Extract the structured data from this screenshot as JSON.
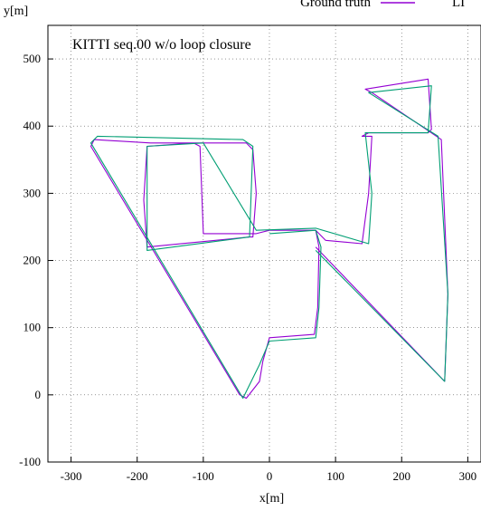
{
  "chart_data": {
    "type": "line",
    "title": "KITTI seq.00 w/o loop closure",
    "xlabel": "x[m]",
    "ylabel": "y[m]",
    "xlim": [
      -335,
      320
    ],
    "ylim": [
      -100,
      550
    ],
    "xticks": [
      -300,
      -200,
      -100,
      0,
      100,
      200,
      300
    ],
    "yticks": [
      -100,
      0,
      100,
      200,
      300,
      400,
      500
    ],
    "grid": true,
    "legend_placement": "top",
    "legend": [
      {
        "name": "Ground truth",
        "color": "#9400d3"
      },
      {
        "name": "LI",
        "color": "#009e73"
      }
    ],
    "series": [
      {
        "name": "Ground truth",
        "color": "#9400d3",
        "x": [
          0,
          70,
          75,
          73,
          68,
          0,
          -10,
          -15,
          -35,
          -45,
          -270,
          -265,
          -180,
          -35,
          -25,
          -20,
          -25,
          -30,
          -185,
          -190,
          -185,
          -115,
          -105,
          -100,
          -90,
          -20,
          0,
          70,
          85,
          140,
          150,
          155,
          140,
          150,
          240,
          245,
          240,
          145,
          155,
          260,
          270,
          265,
          70
        ],
        "y": [
          245,
          245,
          220,
          130,
          90,
          85,
          50,
          20,
          -5,
          0,
          370,
          380,
          375,
          375,
          365,
          300,
          235,
          235,
          220,
          290,
          370,
          375,
          370,
          240,
          240,
          240,
          245,
          245,
          230,
          225,
          300,
          385,
          385,
          390,
          390,
          395,
          470,
          455,
          450,
          380,
          150,
          20,
          220
        ]
      },
      {
        "name": "LI",
        "color": "#009e73",
        "x": [
          0,
          70,
          78,
          75,
          70,
          0,
          -15,
          -40,
          -270,
          -260,
          -40,
          -25,
          -30,
          -185,
          -185,
          -100,
          -20,
          70,
          150,
          155,
          145,
          240,
          245,
          150,
          255,
          270,
          265,
          70
        ],
        "y": [
          240,
          245,
          220,
          130,
          85,
          80,
          45,
          -5,
          375,
          385,
          380,
          370,
          235,
          215,
          370,
          375,
          245,
          248,
          225,
          300,
          390,
          390,
          460,
          450,
          385,
          150,
          20,
          215
        ]
      }
    ]
  }
}
